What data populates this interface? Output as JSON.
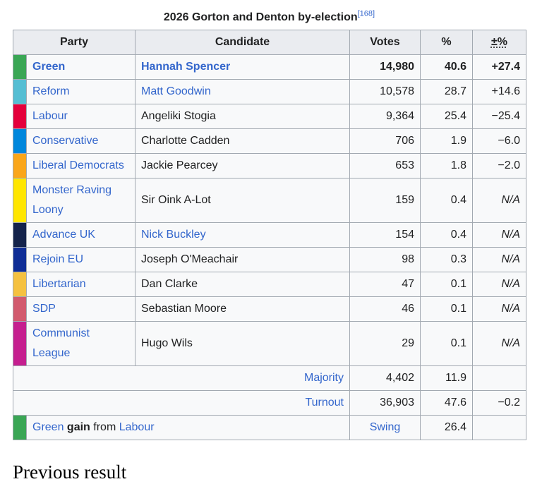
{
  "caption": {
    "title": "2026 Gorton and Denton by-election",
    "ref": "[168]"
  },
  "columns": {
    "party": "Party",
    "candidate": "Candidate",
    "votes": "Votes",
    "percent": "%",
    "change": "±%"
  },
  "rows": [
    {
      "party": "Green",
      "candidate": "Hannah Spencer",
      "votes": "14,980",
      "percent": "40.6",
      "change": "+27.4",
      "color": "#3aa655",
      "winner": true,
      "party_link": true,
      "candidate_link": true
    },
    {
      "party": "Reform",
      "candidate": "Matt Goodwin",
      "votes": "10,578",
      "percent": "28.7",
      "change": "+14.6",
      "color": "#55bed3",
      "winner": false,
      "party_link": true,
      "candidate_link": true
    },
    {
      "party": "Labour",
      "candidate": "Angeliki Stogia",
      "votes": "9,364",
      "percent": "25.4",
      "change": "−25.4",
      "color": "#e4003b",
      "winner": false,
      "party_link": true,
      "candidate_link": false
    },
    {
      "party": "Conservative",
      "candidate": "Charlotte Cadden",
      "votes": "706",
      "percent": "1.9",
      "change": "−6.0",
      "color": "#0087dc",
      "winner": false,
      "party_link": true,
      "candidate_link": false
    },
    {
      "party": "Liberal Democrats",
      "candidate": "Jackie Pearcey",
      "votes": "653",
      "percent": "1.8",
      "change": "−2.0",
      "color": "#faa61a",
      "winner": false,
      "party_link": true,
      "candidate_link": false
    },
    {
      "party": "Monster Raving Loony",
      "candidate": "Sir Oink A-Lot",
      "votes": "159",
      "percent": "0.4",
      "change": "N/A",
      "color": "#ffe600",
      "winner": false,
      "party_link": true,
      "candidate_link": false,
      "tall": true
    },
    {
      "party": "Advance UK",
      "candidate": "Nick Buckley",
      "votes": "154",
      "percent": "0.4",
      "change": "N/A",
      "color": "#14234b",
      "winner": false,
      "party_link": true,
      "candidate_link": true
    },
    {
      "party": "Rejoin EU",
      "candidate": "Joseph O'Meachair",
      "votes": "98",
      "percent": "0.3",
      "change": "N/A",
      "color": "#0f2d96",
      "winner": false,
      "party_link": true,
      "candidate_link": false
    },
    {
      "party": "Libertarian",
      "candidate": "Dan Clarke",
      "votes": "47",
      "percent": "0.1",
      "change": "N/A",
      "color": "#f5c140",
      "winner": false,
      "party_link": true,
      "candidate_link": false
    },
    {
      "party": "SDP",
      "candidate": "Sebastian Moore",
      "votes": "46",
      "percent": "0.1",
      "change": "N/A",
      "color": "#d25a6e",
      "winner": false,
      "party_link": true,
      "candidate_link": false
    },
    {
      "party": "Communist League",
      "candidate": "Hugo Wils",
      "votes": "29",
      "percent": "0.1",
      "change": "N/A",
      "color": "#c51f8f",
      "winner": false,
      "party_link": true,
      "candidate_link": false,
      "tall": true
    }
  ],
  "majority": {
    "label": "Majority",
    "votes": "4,402",
    "percent": "11.9",
    "change": ""
  },
  "turnout": {
    "label": "Turnout",
    "votes": "36,903",
    "percent": "47.6",
    "change": "−0.2"
  },
  "gain": {
    "party": "Green",
    "word": "gain",
    "from": "from",
    "from_party": "Labour",
    "swing_label": "Swing",
    "swing_value": "26.4",
    "color": "#3aa655"
  },
  "next_heading": "Previous result"
}
